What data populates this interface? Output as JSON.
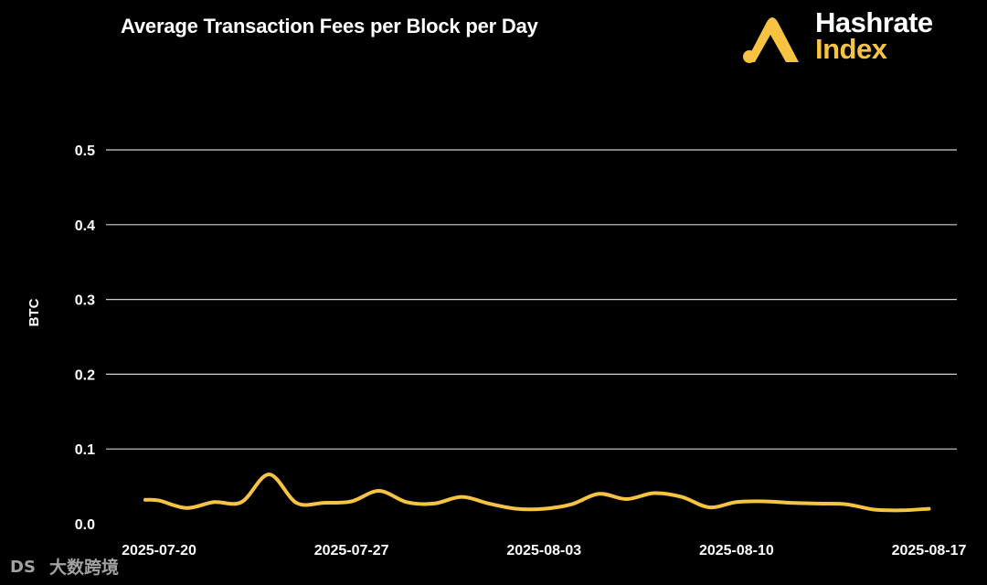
{
  "colors": {
    "background": "#000000",
    "grid": "#cfcfcf",
    "line": "#f6c343",
    "text": "#ffffff",
    "brand_accent": "#f6c343"
  },
  "brand": {
    "line1": "Hashrate",
    "line2": "Index",
    "logo_icon": "hashrate-index-logo-icon"
  },
  "watermark": {
    "text": "大数跨境",
    "logo_text": "DS",
    "icon": "dashuju-logo-icon"
  },
  "chart_data": {
    "type": "line",
    "title": "Average Transaction Fees per Block per Day",
    "xlabel": "",
    "ylabel": "BTC",
    "ylim": [
      0,
      0.5
    ],
    "yticks": [
      "0.0",
      "0.1",
      "0.2",
      "0.3",
      "0.4",
      "0.5"
    ],
    "xticks": [
      "2025-07-20",
      "2025-07-27",
      "2025-08-03",
      "2025-08-10",
      "2025-08-17"
    ],
    "grid": true,
    "series": [
      {
        "name": "Average Transaction Fees per Block",
        "x": [
          "2025-07-20",
          "2025-07-21",
          "2025-07-22",
          "2025-07-23",
          "2025-07-24",
          "2025-07-25",
          "2025-07-26",
          "2025-07-27",
          "2025-07-28",
          "2025-07-29",
          "2025-07-30",
          "2025-07-31",
          "2025-08-01",
          "2025-08-02",
          "2025-08-03",
          "2025-08-04",
          "2025-08-05",
          "2025-08-06",
          "2025-08-07",
          "2025-08-08",
          "2025-08-09",
          "2025-08-10",
          "2025-08-11",
          "2025-08-12",
          "2025-08-13",
          "2025-08-14",
          "2025-08-15",
          "2025-08-16",
          "2025-08-17"
        ],
        "values": [
          0.031,
          0.021,
          0.029,
          0.029,
          0.066,
          0.028,
          0.028,
          0.03,
          0.044,
          0.029,
          0.027,
          0.036,
          0.027,
          0.02,
          0.02,
          0.026,
          0.04,
          0.033,
          0.041,
          0.036,
          0.022,
          0.029,
          0.03,
          0.028,
          0.027,
          0.026,
          0.019,
          0.018,
          0.02
        ],
        "x_start_offset_days": -0.5,
        "x_leading_value": 0.032
      }
    ]
  }
}
